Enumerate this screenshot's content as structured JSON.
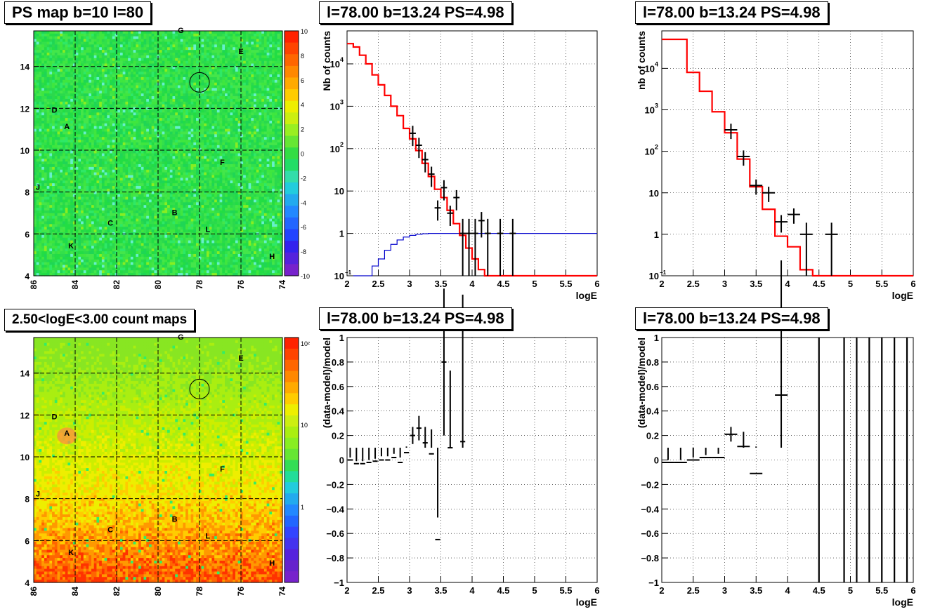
{
  "panels": {
    "map_top": {
      "title": "PS map b=10 l=80",
      "xticks": [
        "86",
        "84",
        "82",
        "80",
        "78",
        "76",
        "74"
      ],
      "yticks": [
        "4",
        "6",
        "8",
        "10",
        "12",
        "14"
      ],
      "colorbar_ticks": [
        "10",
        "8",
        "6",
        "4",
        "2",
        "0",
        "-2",
        "-4",
        "-6",
        "-8",
        "-10"
      ],
      "labels": [
        "G",
        "E",
        "D",
        "A",
        "F",
        "J",
        "C",
        "B",
        "L",
        "K",
        "H"
      ]
    },
    "map_bottom": {
      "title": "2.50<logE<3.00 count maps",
      "xticks": [
        "86",
        "84",
        "82",
        "80",
        "78",
        "76",
        "74"
      ],
      "yticks": [
        "4",
        "6",
        "8",
        "10",
        "12",
        "14"
      ],
      "colorbar_ticks": [
        "10²",
        "10",
        "1"
      ],
      "labels": [
        "G",
        "E",
        "D",
        "A",
        "F",
        "J",
        "C",
        "B",
        "L",
        "K",
        "H"
      ]
    },
    "spec_left": {
      "title": "l=78.00 b=13.24 PS=4.98",
      "ylabel": "Nb of counts",
      "xlabel": "logE"
    },
    "spec_right": {
      "title": "l=78.00 b=13.24 PS=4.98",
      "ylabel": "nb of counts",
      "xlabel": "logE"
    },
    "res_left": {
      "title": "l=78.00 b=13.24 PS=4.98",
      "ylabel": "(data-model)/model",
      "xlabel": "logE"
    },
    "res_right": {
      "title": "l=78.00 b=13.24 PS=4.98",
      "ylabel": "(data-model)/model",
      "xlabel": "logE"
    }
  },
  "colors": {
    "model": "#ff0000",
    "data": "#000000",
    "exposure": "#0000cc",
    "map_base": "#22dd44"
  },
  "chart_data": [
    {
      "type": "heatmap",
      "title": "PS map b=10 l=80",
      "xlim": [
        86,
        74
      ],
      "ylim": [
        4,
        15.7
      ],
      "colorbar_range": [
        -10,
        10
      ],
      "sources": [
        {
          "name": "G",
          "l": 78.9,
          "b": 15.6
        },
        {
          "name": "E",
          "l": 76.0,
          "b": 14.6
        },
        {
          "name": "D",
          "l": 85.0,
          "b": 11.8
        },
        {
          "name": "A",
          "l": 84.4,
          "b": 11.0
        },
        {
          "name": "F",
          "l": 76.9,
          "b": 9.3
        },
        {
          "name": "J",
          "l": 85.8,
          "b": 8.1
        },
        {
          "name": "C",
          "l": 82.3,
          "b": 6.4
        },
        {
          "name": "B",
          "l": 79.2,
          "b": 6.9
        },
        {
          "name": "L",
          "l": 77.6,
          "b": 6.1
        },
        {
          "name": "K",
          "l": 84.2,
          "b": 5.3
        },
        {
          "name": "H",
          "l": 74.5,
          "b": 4.8
        }
      ],
      "circle": {
        "l": 78.0,
        "b": 13.24
      }
    },
    {
      "type": "line",
      "title": "l=78.00 b=13.24 PS=4.98",
      "xlabel": "logE",
      "ylabel": "Nb of counts",
      "xlim": [
        2,
        6
      ],
      "ylim": [
        0.1,
        60000
      ],
      "yscale": "log",
      "series": [
        {
          "x": [
            2.0,
            2.1,
            2.2,
            2.3,
            2.4,
            2.5,
            2.6,
            2.7,
            2.8,
            2.9,
            3.0,
            3.1,
            3.2,
            3.3,
            3.4,
            3.5,
            3.6,
            3.7,
            3.8,
            3.9,
            4.0,
            4.1,
            4.2,
            6.0
          ],
          "values": [
            30000,
            25000,
            16000,
            10000,
            5500,
            3200,
            1800,
            1000,
            600,
            300,
            170,
            90,
            45,
            22,
            11,
            7,
            3.5,
            1.7,
            0.9,
            0.45,
            0.25,
            0.14,
            0.1,
            0.1
          ]
        },
        {
          "x": [
            2.1,
            2.2,
            2.3,
            2.4,
            2.5,
            2.6,
            2.7,
            2.8,
            2.9,
            3.0,
            3.1,
            3.2,
            3.3,
            3.4,
            3.5,
            3.6,
            3.7,
            3.8,
            3.9,
            4.0,
            6.0
          ],
          "values": [
            0.1,
            0.1,
            0.1,
            0.17,
            0.25,
            0.4,
            0.55,
            0.7,
            0.82,
            0.9,
            0.95,
            0.98,
            1.0,
            1.0,
            1.0,
            1.0,
            1.0,
            1.0,
            1.0,
            1.0,
            1.0
          ]
        },
        {
          "x": [
            3.05,
            3.15,
            3.25,
            3.35,
            3.45,
            3.55,
            3.65,
            3.75,
            3.85,
            3.95,
            4.05,
            4.15,
            4.25,
            4.45,
            4.65
          ],
          "values": [
            230,
            120,
            55,
            25,
            4,
            12,
            3,
            7,
            1,
            1,
            1,
            2,
            1,
            1,
            1
          ]
        }
      ]
    },
    {
      "type": "line",
      "title": "l=78.00 b=13.24 PS=4.98",
      "xlabel": "logE",
      "ylabel": "nb of counts",
      "xlim": [
        2,
        6
      ],
      "ylim": [
        0.1,
        80000
      ],
      "yscale": "log",
      "series": [
        {
          "x": [
            2.0,
            2.2,
            2.4,
            2.6,
            2.8,
            3.0,
            3.2,
            3.4,
            3.6,
            3.8,
            4.0,
            4.2,
            4.4,
            6.0
          ],
          "values": [
            50000,
            50000,
            8000,
            2800,
            900,
            280,
            65,
            14,
            4,
            0.9,
            0.5,
            0.14,
            0.1,
            0.1
          ]
        },
        {
          "x": [
            3.1,
            3.3,
            3.5,
            3.7,
            3.9,
            4.1,
            4.3,
            4.7
          ],
          "values": [
            330,
            75,
            15,
            10,
            2,
            3,
            1,
            1
          ]
        }
      ]
    },
    {
      "type": "scatter",
      "title": "l=78.00 b=13.24 PS=4.98",
      "xlabel": "logE",
      "ylabel": "(data-model)/model",
      "xlim": [
        2,
        6
      ],
      "ylim": [
        -1,
        1
      ],
      "x": [
        2.05,
        2.15,
        2.25,
        2.35,
        2.45,
        2.55,
        2.65,
        2.75,
        2.85,
        2.95,
        3.05,
        3.15,
        3.25,
        3.35,
        3.45,
        3.55,
        3.65,
        3.85
      ],
      "values": [
        0.0,
        -0.03,
        -0.03,
        -0.02,
        -0.01,
        0.0,
        0.0,
        0.02,
        -0.02,
        0.06,
        0.2,
        0.26,
        0.14,
        0.05,
        -0.65,
        0.8,
        0.1,
        0.15
      ]
    },
    {
      "type": "scatter",
      "title": "l=78.00 b=13.24 PS=4.98",
      "xlabel": "logE",
      "ylabel": "(data-model)/model",
      "xlim": [
        2,
        6
      ],
      "ylim": [
        -1,
        1
      ],
      "x": [
        2.1,
        2.3,
        2.5,
        2.7,
        2.9,
        3.1,
        3.3,
        3.5,
        3.9
      ],
      "values": [
        -0.02,
        -0.02,
        0.0,
        0.02,
        0.02,
        0.21,
        0.11,
        -0.11,
        0.53
      ]
    }
  ]
}
